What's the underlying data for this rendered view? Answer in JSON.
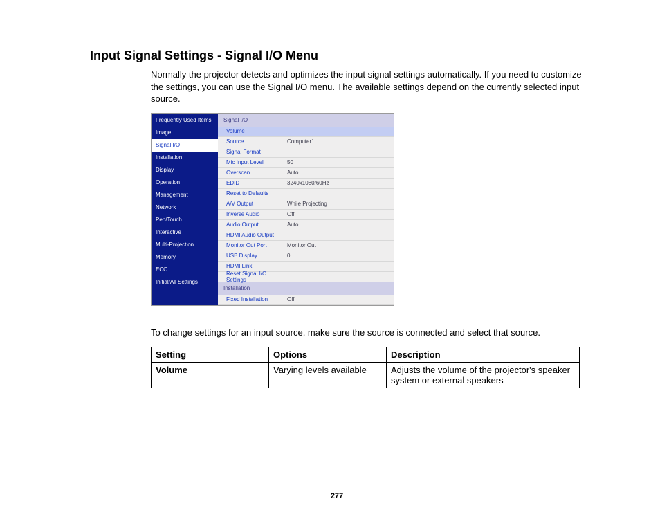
{
  "title": "Input Signal Settings - Signal I/O Menu",
  "intro": "Normally the projector detects and optimizes the input signal settings automatically. If you need to customize the settings, you can use the Signal I/O menu. The available settings depend on the currently selected input source.",
  "screenshot": {
    "sidebar": {
      "bg_color": "#0b1b88",
      "text_color": "#ffffff",
      "selected_bg": "#ffffff",
      "selected_text": "#1639c2",
      "items": [
        {
          "label": "Frequently Used Items",
          "selected": false
        },
        {
          "label": "Image",
          "selected": false
        },
        {
          "label": "Signal I/O",
          "selected": true
        },
        {
          "label": "Installation",
          "selected": false
        },
        {
          "label": "Display",
          "selected": false
        },
        {
          "label": "Operation",
          "selected": false
        },
        {
          "label": "Management",
          "selected": false
        },
        {
          "label": "Network",
          "selected": false
        },
        {
          "label": "Pen/Touch",
          "selected": false
        },
        {
          "label": "Interactive",
          "selected": false
        },
        {
          "label": "Multi-Projection",
          "selected": false
        },
        {
          "label": "Memory",
          "selected": false
        },
        {
          "label": "ECO",
          "selected": false
        },
        {
          "label": "Initial/All Settings",
          "selected": false
        }
      ]
    },
    "sections": [
      {
        "header": "Signal I/O",
        "rows": [
          {
            "label": "Volume",
            "value": "",
            "highlight": true
          },
          {
            "label": "Source",
            "value": "Computer1"
          },
          {
            "label": "Signal Format",
            "value": ""
          },
          {
            "label": "Mic Input Level",
            "value": "50"
          },
          {
            "label": "Overscan",
            "value": "Auto"
          },
          {
            "label": "EDID",
            "value": "3240x1080/60Hz"
          },
          {
            "label": "Reset to Defaults",
            "value": ""
          },
          {
            "label": "A/V Output",
            "value": "While Projecting"
          },
          {
            "label": "Inverse Audio",
            "value": "Off"
          },
          {
            "label": "Audio Output",
            "value": "Auto"
          },
          {
            "label": "HDMI Audio Output",
            "value": ""
          },
          {
            "label": "Monitor Out Port",
            "value": "Monitor Out"
          },
          {
            "label": "USB Display",
            "value": "0"
          },
          {
            "label": "HDMI Link",
            "value": ""
          },
          {
            "label": "Reset Signal I/O Settings",
            "value": ""
          }
        ]
      },
      {
        "header": "Installation",
        "rows": [
          {
            "label": "Fixed Installation",
            "value": "Off"
          }
        ]
      }
    ]
  },
  "instruction": "To change settings for an input source, make sure the source is connected and select that source.",
  "table": {
    "headers": [
      "Setting",
      "Options",
      "Description"
    ],
    "rows": [
      {
        "setting": "Volume",
        "options": "Varying levels available",
        "description": "Adjusts the volume of the projector's speaker system or external speakers"
      }
    ]
  },
  "page_number": "277"
}
